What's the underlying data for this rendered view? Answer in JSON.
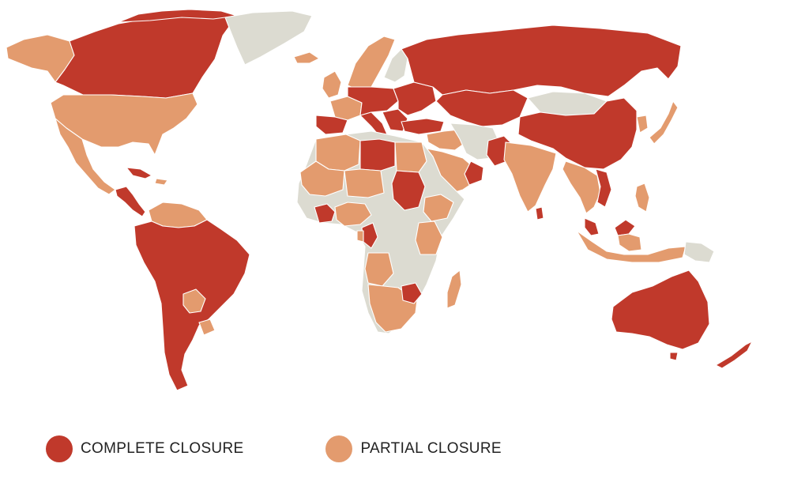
{
  "colors": {
    "complete": "#c0392b",
    "partial": "#e39b6e",
    "none": "#dcdbd1",
    "border": "#ffffff"
  },
  "legend": {
    "complete_label": "COMPLETE CLOSURE",
    "partial_label": "PARTIAL CLOSURE"
  },
  "regions": [
    {
      "name": "alaska",
      "status": "partial"
    },
    {
      "name": "canada",
      "status": "complete"
    },
    {
      "name": "greenland",
      "status": "none"
    },
    {
      "name": "united-states",
      "status": "partial"
    },
    {
      "name": "mexico",
      "status": "partial"
    },
    {
      "name": "central-america",
      "status": "complete"
    },
    {
      "name": "cuba",
      "status": "complete"
    },
    {
      "name": "venezuela-colombia",
      "status": "partial"
    },
    {
      "name": "south-america",
      "status": "complete"
    },
    {
      "name": "paraguay",
      "status": "partial"
    },
    {
      "name": "uruguay",
      "status": "partial"
    },
    {
      "name": "iceland",
      "status": "partial"
    },
    {
      "name": "norway-sweden",
      "status": "partial"
    },
    {
      "name": "finland",
      "status": "none"
    },
    {
      "name": "uk-ireland",
      "status": "partial"
    },
    {
      "name": "iberia",
      "status": "complete"
    },
    {
      "name": "france",
      "status": "partial"
    },
    {
      "name": "central-europe",
      "status": "complete"
    },
    {
      "name": "italy",
      "status": "complete"
    },
    {
      "name": "balkans",
      "status": "complete"
    },
    {
      "name": "eastern-europe",
      "status": "complete"
    },
    {
      "name": "russia",
      "status": "complete"
    },
    {
      "name": "kazakhstan-central-asia",
      "status": "complete"
    },
    {
      "name": "turkey",
      "status": "complete"
    },
    {
      "name": "middle-east-north",
      "status": "partial"
    },
    {
      "name": "iran",
      "status": "none"
    },
    {
      "name": "arabia",
      "status": "partial"
    },
    {
      "name": "oman",
      "status": "complete"
    },
    {
      "name": "pakistan",
      "status": "complete"
    },
    {
      "name": "india",
      "status": "partial"
    },
    {
      "name": "sri-lanka",
      "status": "complete"
    },
    {
      "name": "mongolia",
      "status": "none"
    },
    {
      "name": "china",
      "status": "complete"
    },
    {
      "name": "korea",
      "status": "partial"
    },
    {
      "name": "japan",
      "status": "partial"
    },
    {
      "name": "southeast-asia",
      "status": "partial"
    },
    {
      "name": "vietnam",
      "status": "complete"
    },
    {
      "name": "philippines",
      "status": "partial"
    },
    {
      "name": "malaysia",
      "status": "complete"
    },
    {
      "name": "indonesia",
      "status": "partial"
    },
    {
      "name": "papua",
      "status": "none"
    },
    {
      "name": "australia",
      "status": "complete"
    },
    {
      "name": "new-zealand",
      "status": "complete"
    },
    {
      "name": "africa",
      "status": "none"
    },
    {
      "name": "morocco-algeria",
      "status": "partial"
    },
    {
      "name": "libya",
      "status": "complete"
    },
    {
      "name": "egypt",
      "status": "partial"
    },
    {
      "name": "mauritania-mali",
      "status": "partial"
    },
    {
      "name": "niger-chad",
      "status": "partial"
    },
    {
      "name": "sudan",
      "status": "complete"
    },
    {
      "name": "ethiopia",
      "status": "partial"
    },
    {
      "name": "kenya-tanzania",
      "status": "partial"
    },
    {
      "name": "ivory-coast",
      "status": "complete"
    },
    {
      "name": "ghana-nigeria",
      "status": "partial"
    },
    {
      "name": "congo",
      "status": "complete"
    },
    {
      "name": "gabon",
      "status": "partial"
    },
    {
      "name": "angola",
      "status": "partial"
    },
    {
      "name": "southern-africa",
      "status": "partial"
    },
    {
      "name": "zimbabwe",
      "status": "complete"
    },
    {
      "name": "madagascar",
      "status": "partial"
    }
  ]
}
